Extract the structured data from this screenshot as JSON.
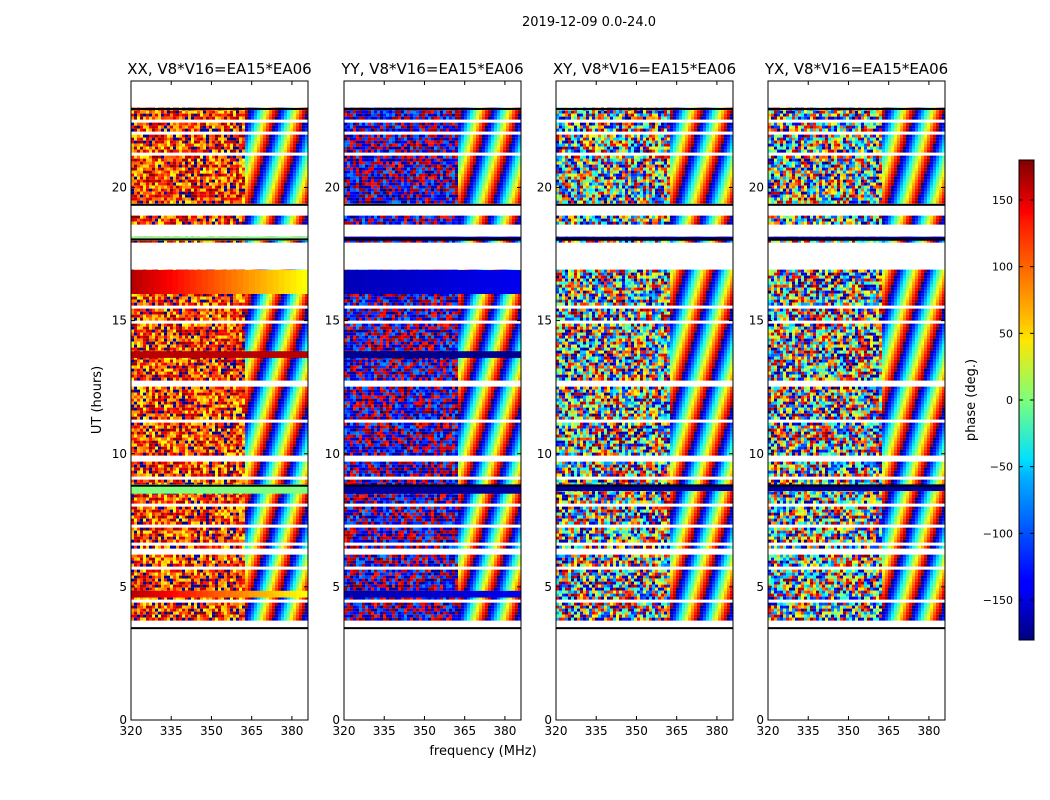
{
  "figure": {
    "suptitle": "2019-12-09 0.0-24.0",
    "xlabel": "frequency (MHz)",
    "ylabel": "UT (hours)"
  },
  "colorbar": {
    "label": "phase (deg.)",
    "ticks": [
      150,
      100,
      50,
      0,
      -50,
      -100,
      -150
    ],
    "tick_labels": [
      "150",
      "100",
      "50",
      "0",
      "−50",
      "−100",
      "−150"
    ],
    "range": [
      -180,
      180
    ],
    "colormap": "jet"
  },
  "chart_data": [
    {
      "type": "heatmap",
      "title": "XX, V8*V16=EA15*EA06",
      "xlim": [
        320,
        386
      ],
      "ylim": [
        0,
        24
      ],
      "xticks": [
        320,
        335,
        350,
        365,
        380
      ],
      "yticks": [
        0,
        5,
        10,
        15,
        20
      ],
      "data_extent_hours": [
        3.4,
        23.0
      ],
      "bands": [
        {
          "from": 16.0,
          "to": 16.9,
          "phase_low_freq": 160,
          "phase_high_freq": 40
        },
        {
          "from": 13.6,
          "to": 13.85,
          "phase_low_freq": 160,
          "phase_high_freq": 160
        },
        {
          "from": 8.5,
          "to": 8.85,
          "phase_low_freq": 0,
          "phase_high_freq": 0
        },
        {
          "from": 4.6,
          "to": 4.85,
          "phase_low_freq": 160,
          "phase_high_freq": 40
        },
        {
          "from": 18.0,
          "to": 18.15,
          "phase_low_freq": 0,
          "phase_high_freq": 0
        }
      ]
    },
    {
      "type": "heatmap",
      "title": "YY, V8*V16=EA15*EA06",
      "xlim": [
        320,
        386
      ],
      "ylim": [
        0,
        24
      ],
      "xticks": [
        320,
        335,
        350,
        365,
        380
      ],
      "yticks": [
        0,
        5,
        10,
        15,
        20
      ],
      "data_extent_hours": [
        3.4,
        23.0
      ],
      "bands": [
        {
          "from": 16.0,
          "to": 16.9,
          "phase_low_freq": -160,
          "phase_high_freq": -140
        },
        {
          "from": 13.6,
          "to": 13.85,
          "phase_low_freq": -175,
          "phase_high_freq": -175
        },
        {
          "from": 8.5,
          "to": 8.85,
          "phase_low_freq": -170,
          "phase_high_freq": -170
        },
        {
          "from": 4.6,
          "to": 4.85,
          "phase_low_freq": -165,
          "phase_high_freq": -140
        },
        {
          "from": 18.0,
          "to": 18.15,
          "phase_low_freq": -170,
          "phase_high_freq": -170
        }
      ]
    },
    {
      "type": "heatmap",
      "title": "XY, V8*V16=EA15*EA06",
      "xlim": [
        320,
        386
      ],
      "ylim": [
        0,
        24
      ],
      "xticks": [
        320,
        335,
        350,
        365,
        380
      ],
      "yticks": [
        0,
        5,
        10,
        15,
        20
      ],
      "data_extent_hours": [
        3.4,
        23.0
      ],
      "bands": [
        {
          "from": 8.6,
          "to": 8.85,
          "phase_low_freq": -170,
          "phase_high_freq": -170
        },
        {
          "from": 18.0,
          "to": 18.15,
          "phase_low_freq": -170,
          "phase_high_freq": -170
        }
      ]
    },
    {
      "type": "heatmap",
      "title": "YX, V8*V16=EA15*EA06",
      "xlim": [
        320,
        386
      ],
      "ylim": [
        0,
        24
      ],
      "xticks": [
        320,
        335,
        350,
        365,
        380
      ],
      "yticks": [
        0,
        5,
        10,
        15,
        20
      ],
      "data_extent_hours": [
        3.4,
        23.0
      ],
      "bands": [
        {
          "from": 8.6,
          "to": 8.85,
          "phase_low_freq": -170,
          "phase_high_freq": -170
        },
        {
          "from": 18.0,
          "to": 18.15,
          "phase_low_freq": -170,
          "phase_high_freq": -170
        }
      ]
    }
  ]
}
